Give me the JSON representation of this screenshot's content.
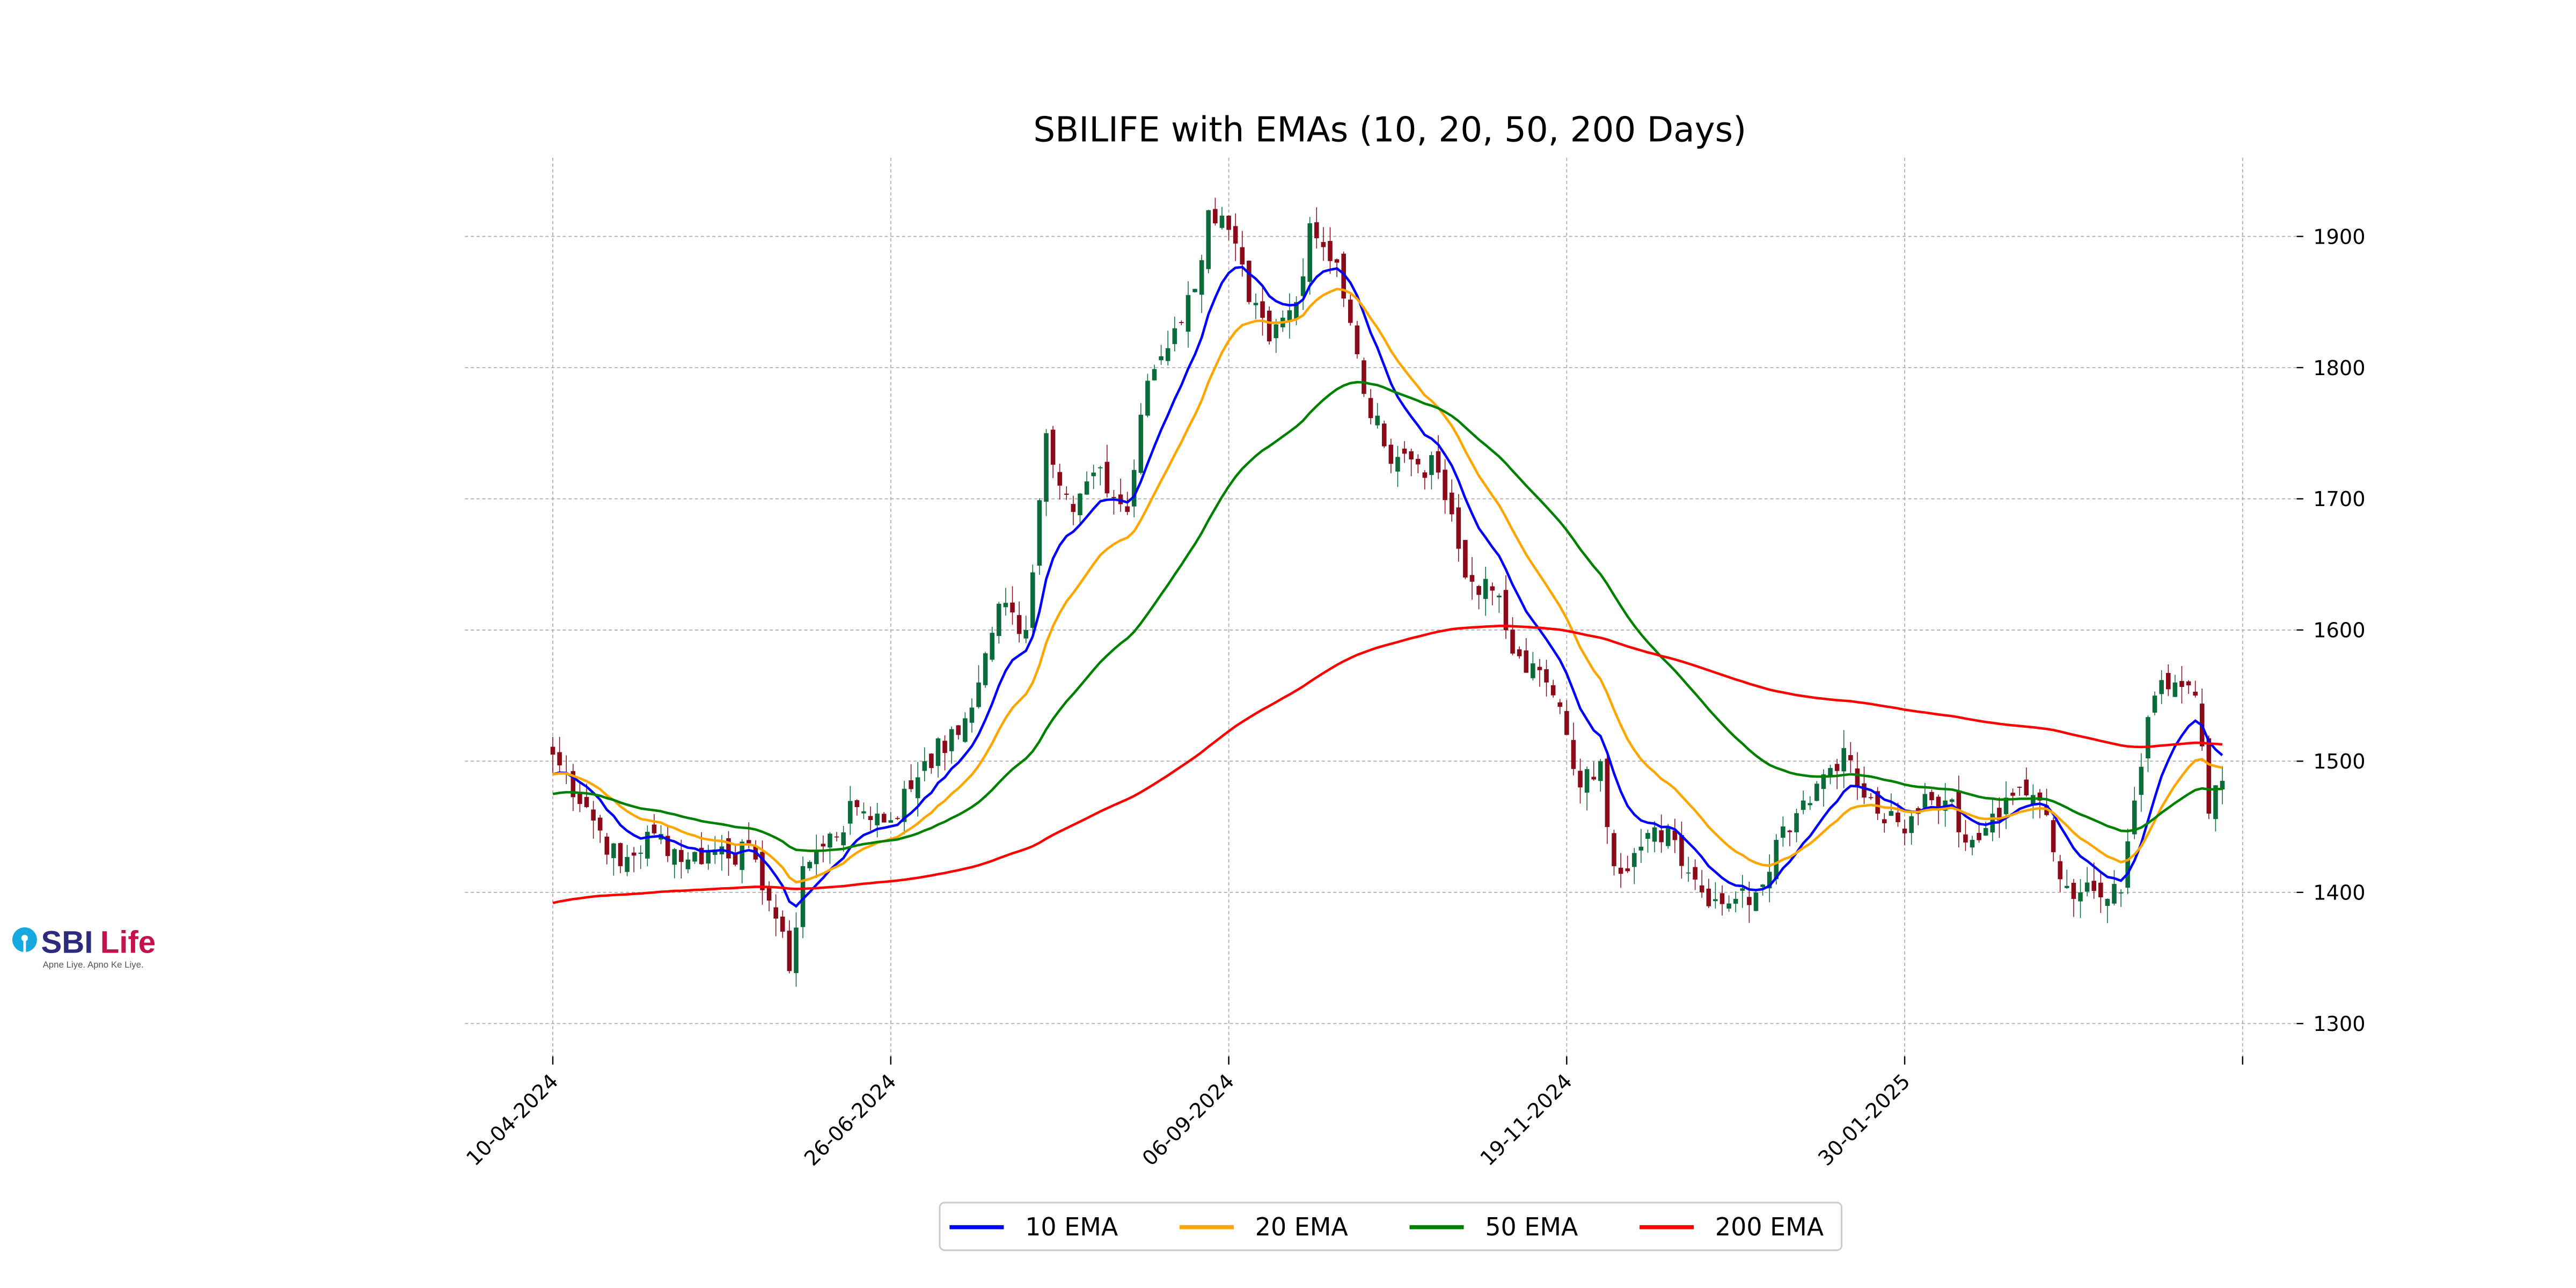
{
  "logo": {
    "brand_a": "SBI",
    "brand_b": "Life",
    "tagline": "Apne Liye. Apno Ke Liye."
  },
  "chart_data": {
    "type": "candlestick+line",
    "title": "SBILIFE with EMAs (10, 20, 50, 200 Days)",
    "xlabel": "",
    "ylabel": "",
    "ylim": [
      1275,
      1960
    ],
    "yticks": [
      1300,
      1400,
      1500,
      1600,
      1700,
      1800,
      1900
    ],
    "xticks": [
      {
        "index": 0,
        "label": "10-04-2024"
      },
      {
        "index": 50,
        "label": "26-06-2024"
      },
      {
        "index": 100,
        "label": "06-09-2024"
      },
      {
        "index": 150,
        "label": "19-11-2024"
      },
      {
        "index": 200,
        "label": "30-01-2025"
      },
      {
        "index": 250,
        "label": ""
      }
    ],
    "xlim": [
      -13,
      258
    ],
    "grid": true,
    "legend_position": "bottom-center",
    "close_keypoints": [
      [
        0,
        1505
      ],
      [
        5,
        1465
      ],
      [
        10,
        1420
      ],
      [
        15,
        1445
      ],
      [
        20,
        1425
      ],
      [
        25,
        1435
      ],
      [
        30,
        1425
      ],
      [
        33,
        1380
      ],
      [
        35,
        1340
      ],
      [
        37,
        1420
      ],
      [
        40,
        1435
      ],
      [
        45,
        1465
      ],
      [
        50,
        1455
      ],
      [
        55,
        1500
      ],
      [
        60,
        1520
      ],
      [
        63,
        1560
      ],
      [
        66,
        1620
      ],
      [
        70,
        1600
      ],
      [
        73,
        1750
      ],
      [
        77,
        1690
      ],
      [
        80,
        1720
      ],
      [
        85,
        1690
      ],
      [
        88,
        1790
      ],
      [
        92,
        1830
      ],
      [
        95,
        1860
      ],
      [
        97,
        1920
      ],
      [
        100,
        1905
      ],
      [
        103,
        1850
      ],
      [
        106,
        1820
      ],
      [
        110,
        1850
      ],
      [
        112,
        1910
      ],
      [
        116,
        1880
      ],
      [
        120,
        1780
      ],
      [
        123,
        1740
      ],
      [
        127,
        1730
      ],
      [
        131,
        1720
      ],
      [
        135,
        1640
      ],
      [
        139,
        1630
      ],
      [
        143,
        1580
      ],
      [
        147,
        1560
      ],
      [
        150,
        1520
      ],
      [
        152,
        1480
      ],
      [
        155,
        1500
      ],
      [
        157,
        1420
      ],
      [
        160,
        1430
      ],
      [
        165,
        1450
      ],
      [
        170,
        1400
      ],
      [
        175,
        1395
      ],
      [
        178,
        1400
      ],
      [
        181,
        1440
      ],
      [
        185,
        1470
      ],
      [
        188,
        1490
      ],
      [
        191,
        1510
      ],
      [
        193,
        1480
      ],
      [
        196,
        1460
      ],
      [
        200,
        1445
      ],
      [
        203,
        1475
      ],
      [
        206,
        1470
      ],
      [
        210,
        1440
      ],
      [
        213,
        1460
      ],
      [
        217,
        1480
      ],
      [
        220,
        1470
      ],
      [
        223,
        1410
      ],
      [
        226,
        1400
      ],
      [
        230,
        1395
      ],
      [
        232,
        1400
      ],
      [
        234,
        1470
      ],
      [
        237,
        1550
      ],
      [
        240,
        1560
      ],
      [
        243,
        1550
      ],
      [
        245,
        1460
      ],
      [
        247,
        1485
      ]
    ],
    "ema_seeds": {
      "ema10": 1490,
      "ema20": 1490,
      "ema50": 1475,
      "ema200": 1392
    },
    "series": [
      {
        "name": "10 EMA",
        "key": "ema10",
        "period": 10,
        "color": "#0000ff"
      },
      {
        "name": "20 EMA",
        "key": "ema20",
        "period": 20,
        "color": "#ffa500"
      },
      {
        "name": "50 EMA",
        "key": "ema50",
        "period": 50,
        "color": "#008000"
      },
      {
        "name": "200 EMA",
        "key": "ema200",
        "period": 200,
        "color": "#ff0000"
      }
    ],
    "candle_colors": {
      "up": "#0b6b3a",
      "down": "#8b0a1a"
    }
  }
}
